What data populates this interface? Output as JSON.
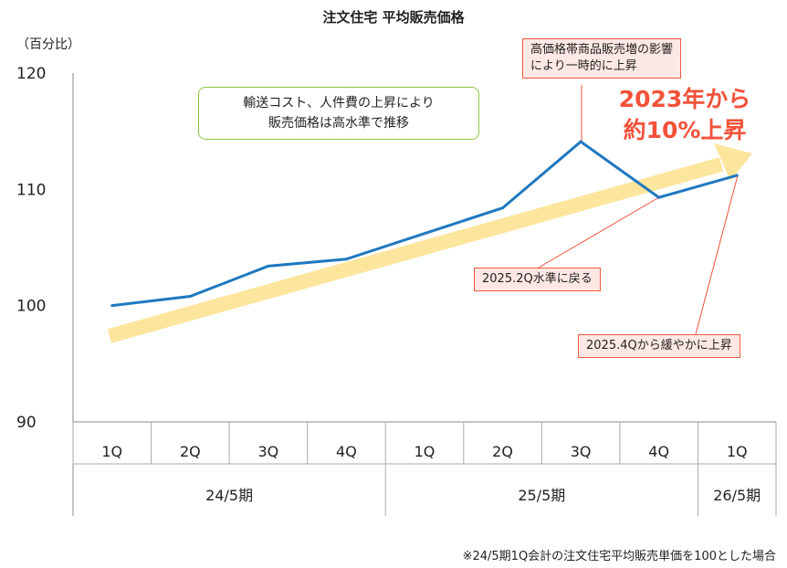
{
  "chart_data": {
    "type": "line",
    "title": "注文住宅 平均販売価格",
    "ylabel": "（百分比）",
    "ylim": [
      90,
      120
    ],
    "yticks": [
      90,
      100,
      110,
      120
    ],
    "categories": [
      "1Q",
      "2Q",
      "3Q",
      "4Q",
      "1Q",
      "2Q",
      "3Q",
      "4Q",
      "1Q"
    ],
    "groups": [
      {
        "label": "24/5期",
        "span": 4
      },
      {
        "label": "25/5期",
        "span": 4
      },
      {
        "label": "26/5期",
        "span": 1
      }
    ],
    "series": [
      {
        "values": [
          100,
          100.8,
          103.4,
          104.0,
          106.2,
          108.4,
          114.1,
          109.3,
          111.2
        ],
        "color": "#1f78c1"
      }
    ],
    "trend_arrow_color": "#fbe08c",
    "annotations": {
      "green_box": [
        "輸送コスト、人件費の上昇により",
        "販売価格は高水準で推移"
      ],
      "peak_box": [
        "高価格帯商品販売増の影響",
        "により一時的に上昇"
      ],
      "drop_box": "2025.2Q水準に戻る",
      "rise_box": "2025.4Qから緩やかに上昇",
      "headline": [
        "2023年から",
        "約10%上昇"
      ]
    },
    "footnote": "※24/5期1Q会計の注文住宅平均販売単価を100とした場合",
    "accent_color": "#f2523a"
  }
}
